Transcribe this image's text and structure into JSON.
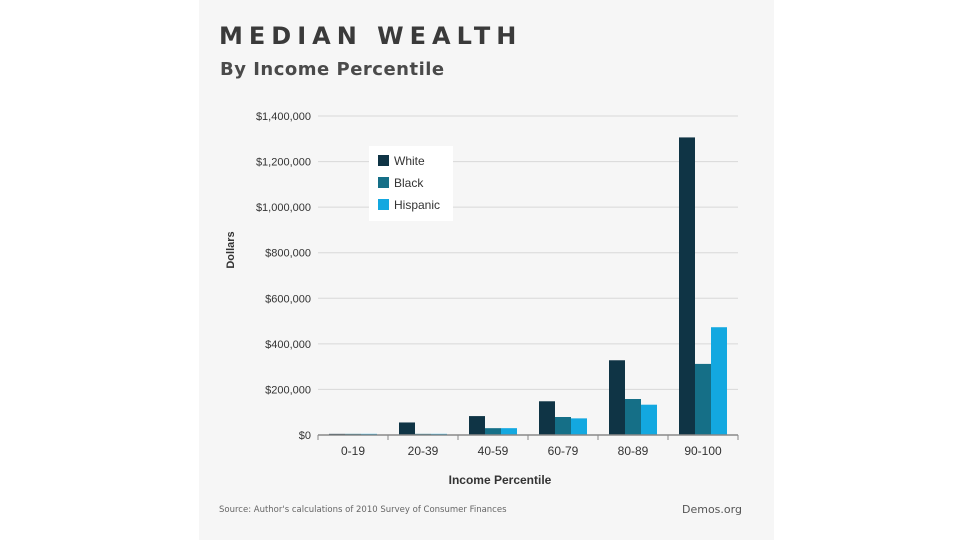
{
  "header": {
    "title": "MEDIAN WEALTH",
    "subtitle": "By Income Percentile"
  },
  "footer": {
    "source": "Source: Author's calculations of 2010 Survey of Consumer Finances",
    "brand": "Demos.org"
  },
  "colors": {
    "card_background": "#f6f6f6",
    "gridline": "#d8d8d8",
    "axis": "#888888",
    "text": "#333333"
  },
  "chart_data": {
    "type": "bar",
    "categories": [
      "0-19",
      "20-39",
      "40-59",
      "60-79",
      "80-89",
      "90-100"
    ],
    "series": [
      {
        "name": "White",
        "color": "#0f3445",
        "values": [
          5000,
          55000,
          83000,
          148000,
          328000,
          1306000
        ]
      },
      {
        "name": "Black",
        "color": "#156f87",
        "values": [
          5000,
          5000,
          30000,
          79000,
          158000,
          312000
        ]
      },
      {
        "name": "Hispanic",
        "color": "#13a8e0",
        "values": [
          5000,
          5000,
          30000,
          73000,
          133000,
          473000
        ]
      }
    ],
    "title": "",
    "xlabel": "Income Percentile",
    "ylabel": "Dollars",
    "ylim": [
      0,
      1400000
    ],
    "yticks": [
      0,
      200000,
      400000,
      600000,
      800000,
      1000000,
      1200000,
      1400000
    ],
    "ytick_labels": [
      "$0",
      "$200,000",
      "$400,000",
      "$600,000",
      "$800,000",
      "$1,000,000",
      "$1,200,000",
      "$1,400,000"
    ],
    "grid": true,
    "legend_position": "top-left"
  }
}
